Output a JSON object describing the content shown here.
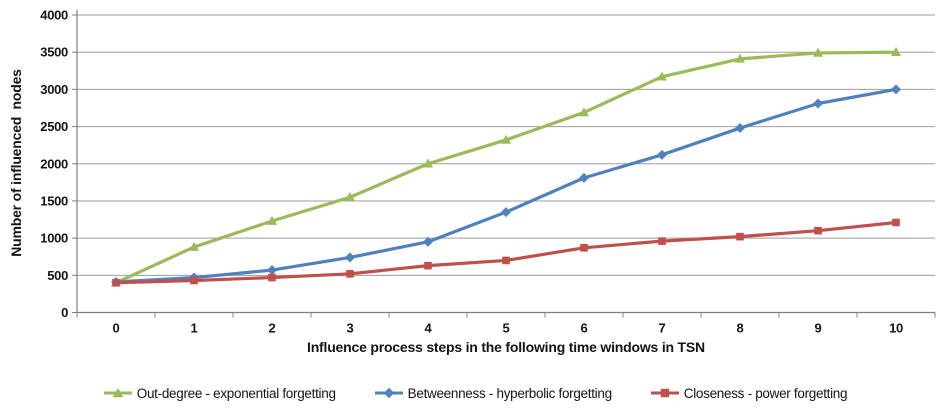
{
  "chart_data": {
    "type": "line",
    "title": "",
    "xlabel": "Influence process steps in the following time windows in TSN",
    "ylabel": "Number of influenced  nodes",
    "categories": [
      "0",
      "1",
      "2",
      "3",
      "4",
      "5",
      "6",
      "7",
      "8",
      "9",
      "10"
    ],
    "ylim": [
      0,
      4000
    ],
    "ytick_step": 500,
    "grid": "horizontal",
    "legend_position": "bottom",
    "colors": {
      "grid": "#9d9d9d",
      "axis": "#7f7f7f",
      "tick_text": "#141414",
      "background": "#ffffff"
    },
    "series": [
      {
        "name": "Out-degree - exponential forgetting",
        "color": "#9BBB59",
        "marker": "triangle",
        "values": [
          400,
          880,
          1230,
          1550,
          2000,
          2320,
          2690,
          3170,
          3410,
          3490,
          3500
        ]
      },
      {
        "name": "Betweenness - hyperbolic forgetting",
        "color": "#4F81BD",
        "marker": "diamond",
        "values": [
          410,
          470,
          570,
          740,
          950,
          1350,
          1810,
          2120,
          2480,
          2810,
          3000
        ]
      },
      {
        "name": "Closeness - power forgetting",
        "color": "#C0504D",
        "marker": "square",
        "values": [
          400,
          430,
          470,
          520,
          630,
          700,
          870,
          960,
          1020,
          1100,
          1210
        ]
      }
    ]
  }
}
